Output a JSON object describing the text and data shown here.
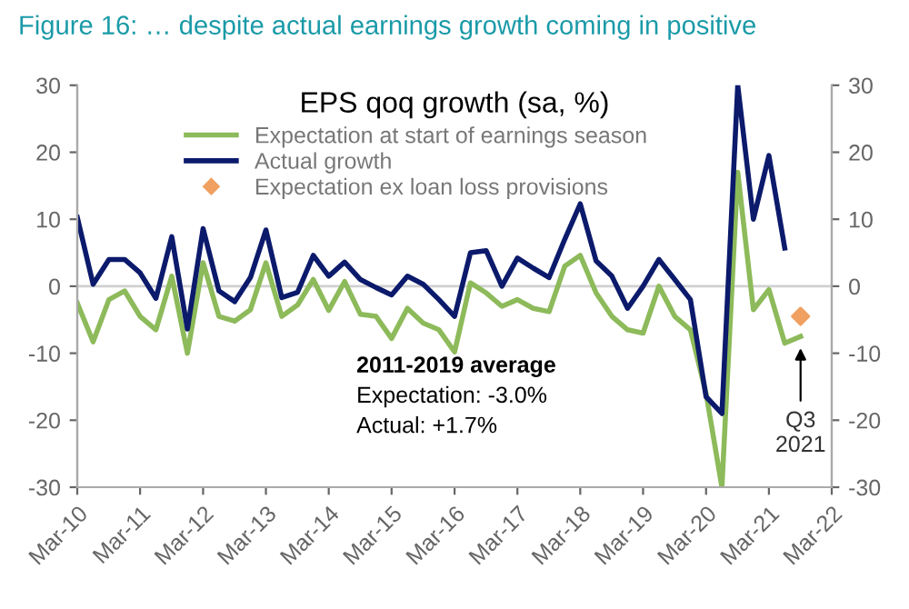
{
  "chart_data": {
    "type": "line",
    "title": "Figure 16: … despite actual earnings growth coming in positive",
    "subtitle": "EPS qoq growth (sa, %)",
    "x": [
      "2010-03",
      "2010-06",
      "2010-09",
      "2010-12",
      "2011-03",
      "2011-06",
      "2011-09",
      "2011-12",
      "2012-03",
      "2012-06",
      "2012-09",
      "2012-12",
      "2013-03",
      "2013-06",
      "2013-09",
      "2013-12",
      "2014-03",
      "2014-06",
      "2014-09",
      "2014-12",
      "2015-03",
      "2015-06",
      "2015-09",
      "2015-12",
      "2016-03",
      "2016-06",
      "2016-09",
      "2016-12",
      "2017-03",
      "2017-06",
      "2017-09",
      "2017-12",
      "2018-03",
      "2018-06",
      "2018-09",
      "2018-12",
      "2019-03",
      "2019-06",
      "2019-09",
      "2019-12",
      "2020-03",
      "2020-06",
      "2020-09",
      "2020-12",
      "2021-03",
      "2021-06",
      "2021-09"
    ],
    "series": [
      {
        "name": "Expectation at start of earnings season",
        "color": "#8dba5a",
        "values": [
          -2.5,
          -8.3,
          -2,
          -0.7,
          -4.5,
          -6.5,
          1.5,
          -10,
          3.5,
          -4.5,
          -5.2,
          -3.5,
          3.5,
          -4.5,
          -2.8,
          1,
          -3.6,
          0.7,
          -4.2,
          -4.5,
          -7.8,
          -3.3,
          -5.5,
          -6.5,
          -9.8,
          0.5,
          -1,
          -3,
          -2,
          -3.3,
          -3.8,
          3,
          4.6,
          -1,
          -4.5,
          -6.5,
          -7,
          0,
          -4.5,
          -6.5,
          -16,
          -30,
          17,
          -3.5,
          -0.5,
          -8.5,
          -7.5
        ]
      },
      {
        "name": "Actual growth",
        "color": "#0b1a6b",
        "values": [
          10.3,
          0.3,
          4,
          4,
          2,
          -1.8,
          7.4,
          -6.4,
          8.6,
          -0.7,
          -2.3,
          1.3,
          8.4,
          -1.7,
          -0.9,
          4.6,
          1.5,
          3.6,
          1,
          -0.2,
          -1.3,
          1.5,
          0.3,
          -2,
          -4.5,
          5,
          5.3,
          0,
          4.2,
          2.7,
          1.3,
          7,
          12.3,
          3.8,
          1.5,
          -3.3,
          0,
          4,
          1,
          -2,
          -16.5,
          -19,
          30,
          10,
          19.5,
          5.7,
          null
        ]
      },
      {
        "name": "Expectation ex loan loss provisions",
        "color": "#f0a060",
        "type": "scatter",
        "marker": "diamond",
        "x": [
          "2021-09"
        ],
        "values": [
          -4.5
        ]
      }
    ],
    "ylim": [
      -30,
      30
    ],
    "yticks": [
      -30,
      -20,
      -10,
      0,
      10,
      20,
      30
    ],
    "y2lim": [
      -30,
      30
    ],
    "y2ticks": [
      -30,
      -20,
      -10,
      0,
      10,
      20,
      30
    ],
    "xlim": [
      "2010-03",
      "2022-03"
    ],
    "xticks": [
      {
        "value": "2010-03",
        "label": "Mar-10"
      },
      {
        "value": "2011-03",
        "label": "Mar-11"
      },
      {
        "value": "2012-03",
        "label": "Mar-12"
      },
      {
        "value": "2013-03",
        "label": "Mar-13"
      },
      {
        "value": "2014-03",
        "label": "Mar-14"
      },
      {
        "value": "2015-03",
        "label": "Mar-15"
      },
      {
        "value": "2016-03",
        "label": "Mar-16"
      },
      {
        "value": "2017-03",
        "label": "Mar-17"
      },
      {
        "value": "2018-03",
        "label": "Mar-18"
      },
      {
        "value": "2019-03",
        "label": "Mar-19"
      },
      {
        "value": "2020-03",
        "label": "Mar-20"
      },
      {
        "value": "2021-03",
        "label": "Mar-21"
      },
      {
        "value": "2022-03",
        "label": "Mar-22"
      }
    ],
    "ref_lines": [
      {
        "axis": "y",
        "value": 0,
        "color": "#d0d0d0"
      }
    ],
    "annotations": [
      "2011-2019 average",
      "Expectation: -3.0%",
      "Actual: +1.7%",
      {
        "text": "Q3\n2021",
        "x": "2021-09",
        "y": -7.5
      }
    ],
    "legend": "top",
    "grid": false,
    "marker": "none",
    "line_style": "solid"
  }
}
